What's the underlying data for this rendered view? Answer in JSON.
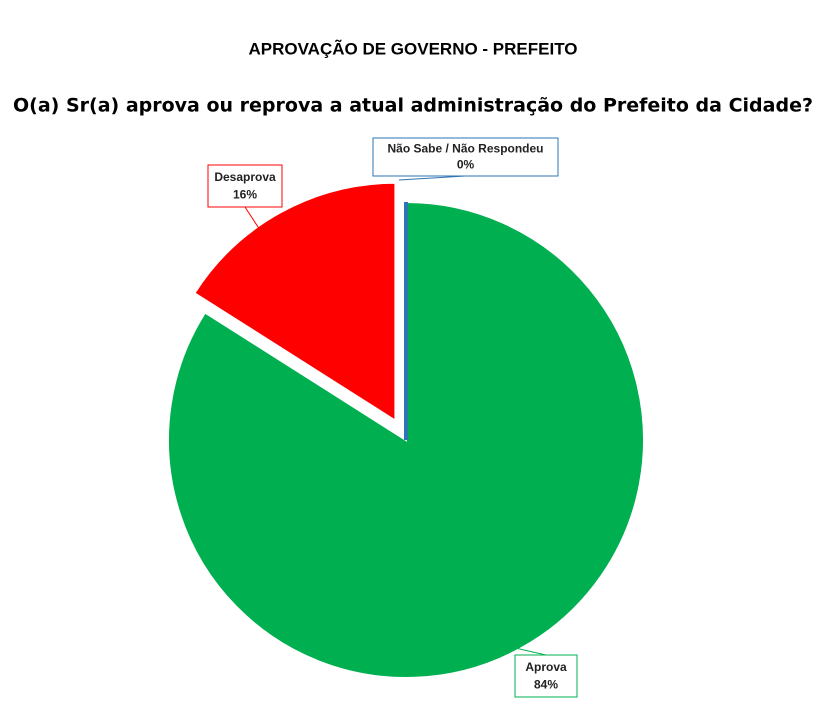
{
  "chart_data": {
    "type": "pie",
    "title": "APROVAÇÃO DE GOVERNO - PREFEITO",
    "subtitle": "O(a) Sr(a) aprova ou reprova a atual administração do Prefeito da Cidade?",
    "categories": [
      "Aprova",
      "Desaprova",
      "Não Sabe / Não Respondeu"
    ],
    "values": [
      84,
      16,
      0
    ],
    "value_labels": [
      "84%",
      "16%",
      "0%"
    ],
    "colors": [
      "#00b050",
      "#ff0000",
      "#2e75b6"
    ],
    "exploded": [
      false,
      true,
      false
    ]
  }
}
